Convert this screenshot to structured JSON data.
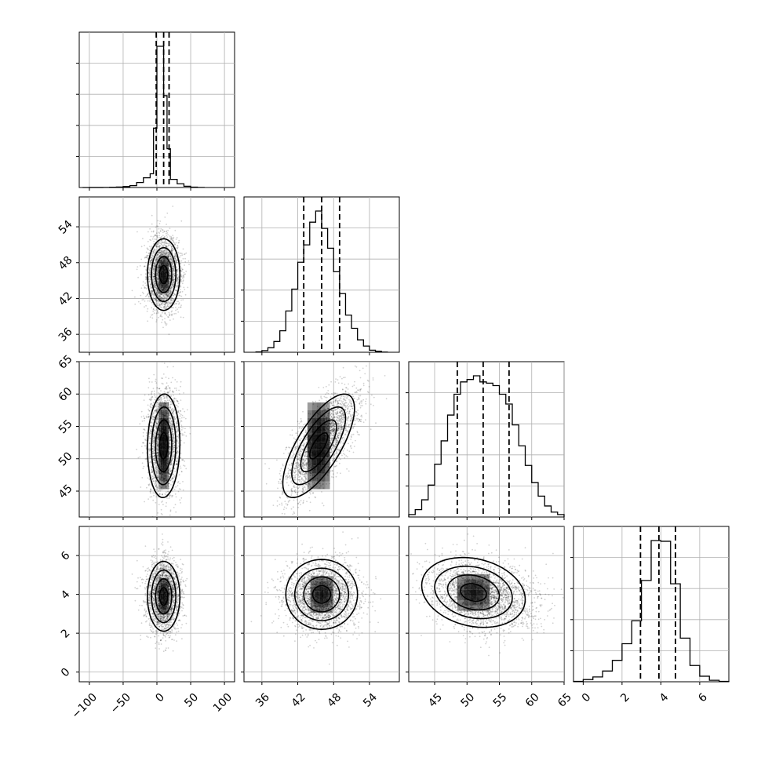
{
  "chart_data": {
    "type": "corner",
    "parameters": [
      {
        "id": "p0",
        "range": [
          -115,
          115
        ],
        "ticks": [
          -100,
          -50,
          0,
          50,
          100
        ],
        "tick_labels": [
          "−100",
          "−50",
          "0",
          "50",
          "100"
        ],
        "mean": 10,
        "sd": 12,
        "quantiles": [
          -1,
          10,
          18
        ],
        "hist_bins": [
          -110,
          -100,
          -90,
          -80,
          -70,
          -60,
          -50,
          -40,
          -30,
          -20,
          -10,
          -5,
          0,
          5,
          10,
          15,
          20,
          30,
          40,
          50,
          60,
          70
        ],
        "hist_counts": [
          0,
          1,
          2,
          4,
          8,
          14,
          30,
          60,
          160,
          310,
          440,
          1900,
          4520,
          4520,
          2940,
          1240,
          260,
          120,
          40,
          12,
          4
        ]
      },
      {
        "id": "p1",
        "range": [
          33,
          59
        ],
        "ticks": [
          36,
          42,
          48,
          54
        ],
        "tick_labels": [
          "36",
          "42",
          "48",
          "54"
        ],
        "mean": 46,
        "sd": 3,
        "quantiles": [
          43,
          46,
          49
        ],
        "hist_bins": [
          35,
          36,
          37,
          38,
          39,
          40,
          41,
          42,
          43,
          44,
          45,
          46,
          47,
          48,
          49,
          50,
          51,
          52,
          53,
          54,
          55,
          56,
          57
        ],
        "hist_counts": [
          10,
          40,
          110,
          260,
          520,
          1000,
          1530,
          2180,
          2600,
          3150,
          3420,
          3000,
          2520,
          1950,
          1420,
          900,
          580,
          300,
          150,
          50,
          25,
          5
        ]
      },
      {
        "id": "p2",
        "range": [
          41,
          65
        ],
        "ticks": [
          45,
          50,
          55,
          60,
          65
        ],
        "tick_labels": [
          "45",
          "50",
          "55",
          "60",
          "65"
        ],
        "mean": 52.5,
        "sd": 4,
        "quantiles": [
          48.5,
          52.5,
          56.5
        ],
        "hist_bins": [
          41,
          42,
          43,
          44,
          45,
          46,
          47,
          48,
          49,
          50,
          51,
          52,
          53,
          54,
          55,
          56,
          57,
          58,
          59,
          60,
          61,
          62,
          63,
          64,
          65
        ],
        "hist_counts": [
          20,
          60,
          140,
          260,
          430,
          620,
          830,
          1000,
          1100,
          1120,
          1150,
          1100,
          1090,
          1070,
          1000,
          920,
          750,
          580,
          420,
          280,
          170,
          90,
          40,
          20
        ]
      },
      {
        "id": "p3",
        "range": [
          -0.5,
          7.5
        ],
        "ticks": [
          0,
          2,
          4,
          6
        ],
        "tick_labels": [
          "0",
          "2",
          "4",
          "6"
        ],
        "mean": 3.9,
        "sd": 0.9,
        "quantiles": [
          2.95,
          3.9,
          4.75
        ],
        "hist_bins": [
          -0.5,
          0.0,
          0.5,
          1.0,
          1.5,
          2.0,
          2.5,
          3.0,
          3.5,
          4.0,
          4.5,
          5.0,
          5.5,
          6.0,
          6.5,
          7.0,
          7.5
        ],
        "hist_counts": [
          10,
          60,
          130,
          290,
          580,
          1030,
          1650,
          2740,
          3820,
          3800,
          2650,
          1180,
          440,
          150,
          40,
          10
        ]
      }
    ],
    "pairs": [
      {
        "row": 1,
        "col": 0,
        "rho": 0.0,
        "peaks": [
          [
            10,
            46
          ]
        ]
      },
      {
        "row": 2,
        "col": 0,
        "rho": 0.05,
        "peaks": [
          [
            10,
            54.5
          ],
          [
            10,
            49.5
          ]
        ]
      },
      {
        "row": 2,
        "col": 1,
        "rho": 0.72,
        "peaks": [
          [
            45.5,
            54.5
          ],
          [
            45.5,
            49.5
          ]
        ]
      },
      {
        "row": 3,
        "col": 0,
        "rho": 0.0,
        "peaks": [
          [
            10,
            3.9
          ]
        ]
      },
      {
        "row": 3,
        "col": 1,
        "rho": 0.0,
        "peaks": [
          [
            46,
            4.0
          ]
        ]
      },
      {
        "row": 3,
        "col": 2,
        "rho": -0.2,
        "peaks": [
          [
            51,
            4.1
          ]
        ]
      }
    ],
    "contour_levels": [
      "0.5 sigma",
      "1 sigma",
      "1.5 sigma",
      "2 sigma"
    ],
    "grid": true,
    "legend": "none",
    "title": "",
    "axis_labels": []
  }
}
